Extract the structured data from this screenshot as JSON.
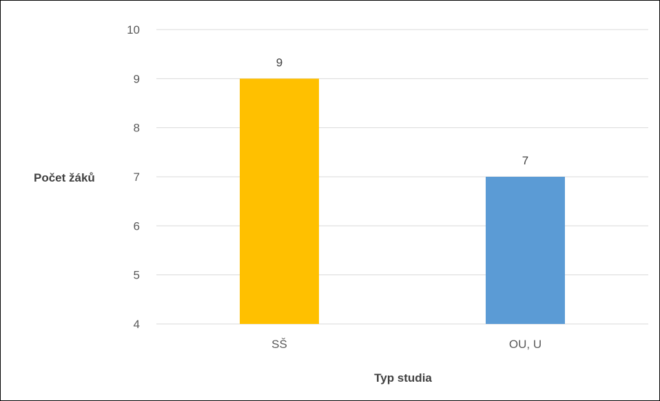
{
  "chart_data": {
    "type": "bar",
    "categories": [
      "SŠ",
      "OU, U"
    ],
    "values": [
      9,
      7
    ],
    "data_labels": [
      "9",
      "7"
    ],
    "colors": [
      "#FFC000",
      "#5B9BD5"
    ],
    "title": "",
    "xlabel": "Typ studia",
    "ylabel": "Počet žáků",
    "ylim": [
      4,
      10
    ],
    "yticks": [
      4,
      5,
      6,
      7,
      8,
      9,
      10
    ],
    "ytick_labels": [
      "4",
      "5",
      "6",
      "7",
      "8",
      "9",
      "10"
    ],
    "grid": true,
    "legend": "none"
  }
}
